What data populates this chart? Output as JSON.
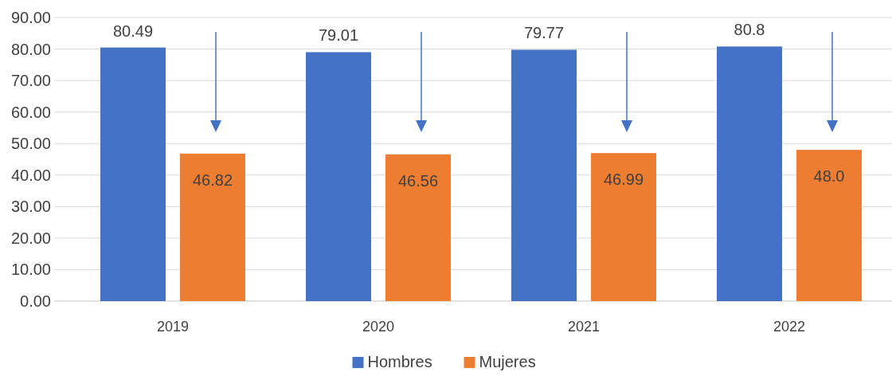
{
  "chart_data": {
    "type": "bar",
    "categories": [
      "2019",
      "2020",
      "2021",
      "2022"
    ],
    "series": [
      {
        "name": "Hombres",
        "color": "#4472c4",
        "values": [
          80.49,
          79.01,
          79.77,
          80.8
        ],
        "value_labels": [
          "80.49",
          "79.01",
          "79.77",
          "80.8"
        ]
      },
      {
        "name": "Mujeres",
        "color": "#ed7d31",
        "values": [
          46.82,
          46.56,
          46.99,
          48.0
        ],
        "value_labels": [
          "46.82",
          "46.56",
          "46.99",
          "48.0"
        ]
      }
    ],
    "ylim": [
      0,
      90
    ],
    "yticks": [
      {
        "value": 0,
        "label": "0.00"
      },
      {
        "value": 10,
        "label": "10.00"
      },
      {
        "value": 20,
        "label": "20.00"
      },
      {
        "value": 30,
        "label": "30.00"
      },
      {
        "value": 40,
        "label": "40.00"
      },
      {
        "value": 50,
        "label": "50.00"
      },
      {
        "value": 60,
        "label": "60.00"
      },
      {
        "value": 70,
        "label": "70.00"
      },
      {
        "value": 80,
        "label": "80.00"
      },
      {
        "value": 90,
        "label": "90.00"
      }
    ],
    "grid": "y",
    "legend": "bottom"
  }
}
